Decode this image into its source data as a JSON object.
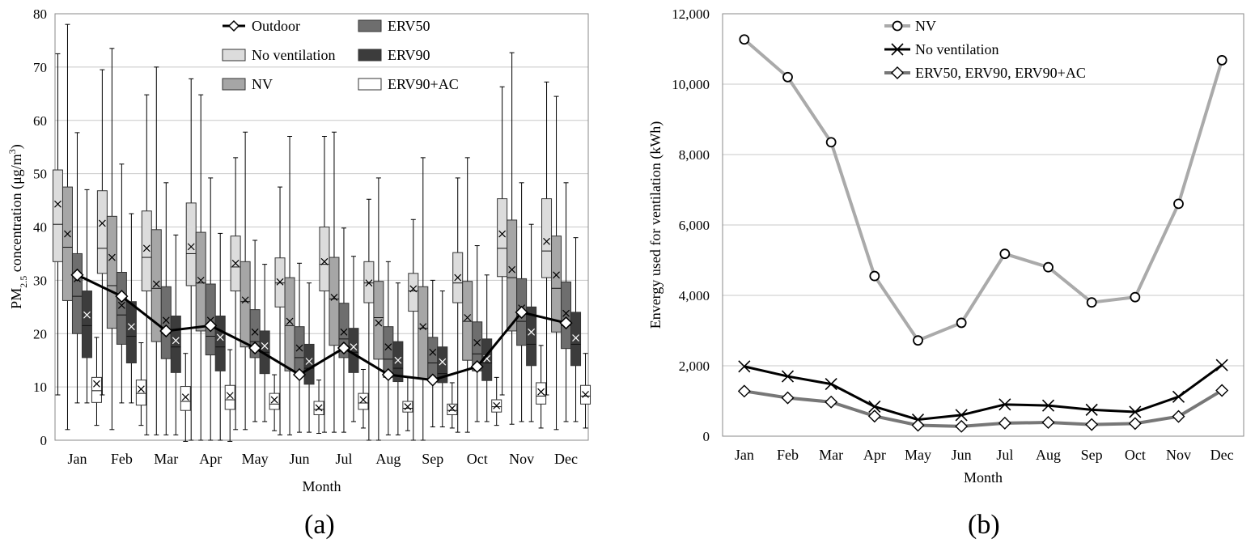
{
  "figure": {
    "label_a": "(a)",
    "label_b": "(b)"
  },
  "colors": {
    "outdoor": "#000000",
    "no_ventilation_box": "#dcdcdc",
    "nv_box": "#a6a6a6",
    "erv50_box": "#6e6e6e",
    "erv90_box": "#3c3c3c",
    "erv90ac_box": "#ffffff",
    "nv_line": "#aaaaaa",
    "no_vent_line": "#000000",
    "erv_line": "#777777"
  },
  "chart_data": [
    {
      "type": "box",
      "title": "",
      "xlabel": "Month",
      "ylabel": "PM2.5 concentration (μg/m3)",
      "ylabel_parts": {
        "pm": "PM",
        "sub": "2.5",
        "mid": " concentration (μg/m",
        "sup": "3",
        "end": ")"
      },
      "ylim": [
        0,
        80
      ],
      "yticks": [
        0,
        10,
        20,
        30,
        40,
        50,
        60,
        70,
        80
      ],
      "grid": true,
      "legend_position": "top",
      "categories": [
        "Jan",
        "Feb",
        "Mar",
        "Apr",
        "May",
        "Jun",
        "Jul",
        "Aug",
        "Sep",
        "Oct",
        "Nov",
        "Dec"
      ],
      "legend": [
        "Outdoor",
        "ERV50",
        "No ventilation",
        "ERV90",
        "NV",
        "ERV90+AC"
      ],
      "outdoor": {
        "name": "Outdoor",
        "values": [
          31,
          27,
          20.5,
          21.5,
          17.3,
          12.3,
          17.3,
          12.3,
          11.3,
          13.8,
          24,
          22
        ]
      },
      "series": [
        {
          "name": "No ventilation",
          "boxes": [
            [
              8.5,
              33.5,
              40.5,
              50.7,
              72.5,
              44.3
            ],
            [
              8.5,
              31.3,
              36,
              46.8,
              69.5,
              40.7
            ],
            [
              1,
              28,
              34.3,
              43,
              64.8,
              36
            ],
            [
              0,
              29,
              35,
              44.5,
              67.8,
              36.3
            ],
            [
              2,
              28,
              32.5,
              38.3,
              53,
              33.2
            ],
            [
              1,
              25,
              29.5,
              34.2,
              47.5,
              29.7
            ],
            [
              1.5,
              28,
              33,
              40,
              57,
              33.5
            ],
            [
              0,
              25.8,
              29.5,
              33.5,
              45.2,
              29.5
            ],
            [
              0,
              24.2,
              28,
              31.3,
              41.4,
              28.4
            ],
            [
              1.5,
              25.8,
              29.5,
              35.2,
              49.2,
              30.5
            ],
            [
              8.5,
              30.7,
              36,
              45.3,
              66.3,
              38.7
            ],
            [
              8.5,
              30.5,
              35.5,
              45.3,
              67.2,
              37.3
            ]
          ]
        },
        {
          "name": "NV",
          "boxes": [
            [
              2,
              26.2,
              36.2,
              47.5,
              78,
              38.7
            ],
            [
              2,
              21,
              29,
              42,
              73.5,
              34.3
            ],
            [
              1,
              18.5,
              28.5,
              39.5,
              70,
              29.3
            ],
            [
              0,
              20.5,
              29.5,
              39,
              64.8,
              30
            ],
            [
              2,
              17.5,
              26,
              33.5,
              57.8,
              26.3
            ],
            [
              1,
              13,
              21.5,
              30.5,
              57,
              22.3
            ],
            [
              1.5,
              17.8,
              26.5,
              34.3,
              57.8,
              26.8
            ],
            [
              0,
              15.2,
              23,
              29.8,
              49.2,
              22
            ],
            [
              0,
              11.5,
              21,
              28.8,
              53,
              21.3
            ],
            [
              1.5,
              15,
              22.3,
              29.8,
              53,
              23
            ],
            [
              3,
              20.5,
              30.5,
              41.3,
              72.7,
              32
            ],
            [
              2,
              20.3,
              28.5,
              38.3,
              64.5,
              31
            ]
          ]
        },
        {
          "name": "ERV50",
          "boxes": [
            [
              7,
              20,
              27,
              35,
              57.7,
              30.3
            ],
            [
              7,
              18,
              23.5,
              31.5,
              51.8,
              25.3
            ],
            [
              1,
              15.3,
              20,
              28.8,
              48.3,
              22.5
            ],
            [
              0,
              16,
              19.5,
              29.3,
              49.2,
              22.5
            ],
            [
              3.5,
              15.5,
              18.5,
              24.5,
              37.5,
              20.3
            ],
            [
              1.5,
              12.5,
              15.5,
              21.3,
              33.2,
              17.3
            ],
            [
              1.5,
              15.5,
              19,
              25.7,
              39.8,
              20.3
            ],
            [
              1,
              11.8,
              15.2,
              21.3,
              33.5,
              17.5
            ],
            [
              2.5,
              11.2,
              14.5,
              19.3,
              30,
              16.5
            ],
            [
              3.5,
              13,
              16.2,
              22.2,
              36.5,
              18.3
            ],
            [
              3.5,
              17.8,
              22.3,
              30.3,
              48.3,
              24.8
            ],
            [
              3.5,
              17.2,
              21.5,
              29.7,
              48.3,
              23.8
            ]
          ]
        },
        {
          "name": "ERV90",
          "boxes": [
            [
              7,
              15.5,
              21.5,
              28,
              47,
              23.5
            ],
            [
              7,
              14.5,
              19.5,
              26,
              42.5,
              21.3
            ],
            [
              1,
              12.7,
              17.5,
              23.3,
              38.5,
              18.7
            ],
            [
              0,
              13,
              17.5,
              23.3,
              38.8,
              19.3
            ],
            [
              3.5,
              12.5,
              16.5,
              20.5,
              33,
              17.7
            ],
            [
              1.5,
              10.5,
              13.5,
              18,
              29.5,
              14.8
            ],
            [
              3.5,
              12.7,
              16.5,
              21,
              34.5,
              17.5
            ],
            [
              1,
              11,
              13.5,
              18.5,
              29.5,
              15
            ],
            [
              2.5,
              10.8,
              12.5,
              17.5,
              28,
              14.7
            ],
            [
              3.5,
              11.2,
              14.5,
              19,
              31,
              15.3
            ],
            [
              3.5,
              14,
              18,
              25,
              40.5,
              20.3
            ],
            [
              3.5,
              14,
              18,
              24,
              38,
              19.2
            ]
          ]
        },
        {
          "name": "ERV90+AC",
          "boxes": [
            [
              4,
              8.3,
              10.5,
              13,
              20.5,
              11.8
            ],
            [
              4,
              7.8,
              10,
              12.5,
              19.5,
              10.8
            ],
            [
              1,
              6.8,
              8.5,
              11.3,
              17.5,
              9.3
            ],
            [
              1,
              7,
              8.8,
              11.5,
              18.2,
              9.6
            ],
            [
              3,
              7,
              8,
              10,
              13.5,
              8.8
            ],
            [
              2.5,
              6,
              7,
              8.5,
              12.5,
              7.3
            ],
            [
              3.5,
              7,
              8.2,
              10,
              14.5,
              8.8
            ],
            [
              3,
              6.5,
              7.2,
              8.5,
              13,
              7.5
            ],
            [
              3.5,
              6,
              6.8,
              8,
              12,
              7.2
            ],
            [
              4,
              6.5,
              7.5,
              8.8,
              13,
              7.7
            ],
            [
              3.5,
              8,
              9.5,
              12,
              19,
              10.3
            ],
            [
              3.5,
              8,
              9.5,
              11.5,
              17.5,
              9.8
            ]
          ]
        }
      ]
    },
    {
      "type": "line",
      "title": "",
      "xlabel": "Month",
      "ylabel": "Envergy used for ventilation (kWh)",
      "ylim": [
        0,
        12000
      ],
      "yticks": [
        0,
        2000,
        4000,
        6000,
        8000,
        10000,
        12000
      ],
      "ytick_labels": [
        "0",
        "2,000",
        "4,000",
        "6,000",
        "8,000",
        "10,000",
        "12,000"
      ],
      "grid": true,
      "legend_position": "top-left",
      "categories": [
        "Jan",
        "Feb",
        "Mar",
        "Apr",
        "May",
        "Jun",
        "Jul",
        "Aug",
        "Sep",
        "Oct",
        "Nov",
        "Dec"
      ],
      "series": [
        {
          "name": "NV",
          "marker": "circle",
          "values": [
            11270,
            10200,
            8350,
            4550,
            2720,
            3220,
            5180,
            4800,
            3800,
            3950,
            6600,
            10680
          ]
        },
        {
          "name": "No ventilation",
          "marker": "x",
          "values": [
            1980,
            1700,
            1480,
            840,
            470,
            600,
            900,
            870,
            750,
            690,
            1120,
            2020
          ]
        },
        {
          "name": "ERV50, ERV90, ERV90+AC",
          "marker": "diamond",
          "values": [
            1280,
            1090,
            970,
            570,
            310,
            280,
            370,
            390,
            330,
            360,
            560,
            1300
          ]
        }
      ]
    }
  ]
}
